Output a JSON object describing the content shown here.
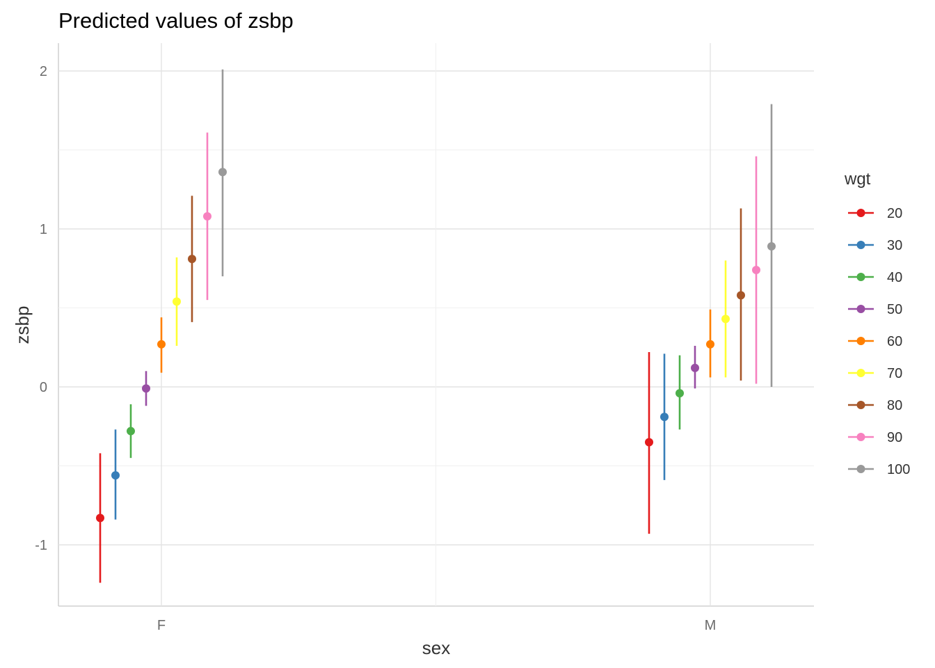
{
  "chart_data": {
    "type": "scatter",
    "subtype": "pointrange",
    "title": "Predicted values of zsbp",
    "xlabel": "sex",
    "ylabel": "zsbp",
    "categories": [
      "F",
      "M"
    ],
    "ylim": [
      -1.4,
      2.2
    ],
    "yticks": [
      -1,
      0,
      1,
      2
    ],
    "grid": true,
    "legend": {
      "title": "wgt",
      "position": "right"
    },
    "series": [
      {
        "name": "20",
        "color": "#E41A1C",
        "points": [
          {
            "x": "F",
            "y": -0.83,
            "lo": -1.24,
            "hi": -0.42
          },
          {
            "x": "M",
            "y": -0.35,
            "lo": -0.93,
            "hi": 0.22
          }
        ]
      },
      {
        "name": "30",
        "color": "#377EB8",
        "points": [
          {
            "x": "F",
            "y": -0.56,
            "lo": -0.84,
            "hi": -0.27
          },
          {
            "x": "M",
            "y": -0.19,
            "lo": -0.59,
            "hi": 0.21
          }
        ]
      },
      {
        "name": "40",
        "color": "#4DAF4A",
        "points": [
          {
            "x": "F",
            "y": -0.28,
            "lo": -0.45,
            "hi": -0.11
          },
          {
            "x": "M",
            "y": -0.04,
            "lo": -0.27,
            "hi": 0.2
          }
        ]
      },
      {
        "name": "50",
        "color": "#984EA3",
        "points": [
          {
            "x": "F",
            "y": -0.01,
            "lo": -0.12,
            "hi": 0.1
          },
          {
            "x": "M",
            "y": 0.12,
            "lo": -0.01,
            "hi": 0.26
          }
        ]
      },
      {
        "name": "60",
        "color": "#FF7F00",
        "points": [
          {
            "x": "F",
            "y": 0.27,
            "lo": 0.09,
            "hi": 0.44
          },
          {
            "x": "M",
            "y": 0.27,
            "lo": 0.06,
            "hi": 0.49
          }
        ]
      },
      {
        "name": "70",
        "color": "#FFFF33",
        "points": [
          {
            "x": "F",
            "y": 0.54,
            "lo": 0.26,
            "hi": 0.82
          },
          {
            "x": "M",
            "y": 0.43,
            "lo": 0.06,
            "hi": 0.8
          }
        ]
      },
      {
        "name": "80",
        "color": "#A65628",
        "points": [
          {
            "x": "F",
            "y": 0.81,
            "lo": 0.41,
            "hi": 1.21
          },
          {
            "x": "M",
            "y": 0.58,
            "lo": 0.04,
            "hi": 1.13
          }
        ]
      },
      {
        "name": "90",
        "color": "#F781BF",
        "points": [
          {
            "x": "F",
            "y": 1.08,
            "lo": 0.55,
            "hi": 1.61
          },
          {
            "x": "M",
            "y": 0.74,
            "lo": 0.02,
            "hi": 1.46
          }
        ]
      },
      {
        "name": "100",
        "color": "#999999",
        "points": [
          {
            "x": "F",
            "y": 1.36,
            "lo": 0.7,
            "hi": 2.01
          },
          {
            "x": "M",
            "y": 0.89,
            "lo": 0.0,
            "hi": 1.79
          }
        ]
      }
    ]
  }
}
